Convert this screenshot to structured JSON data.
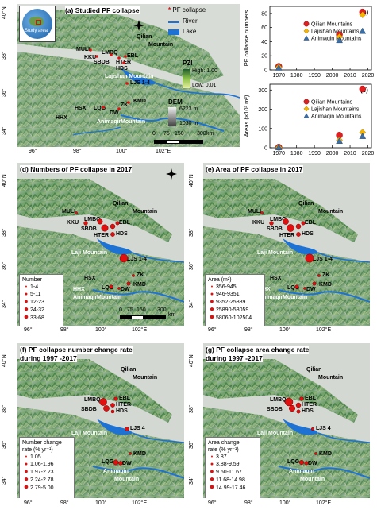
{
  "panel_a": {
    "label": "(a) Studied PF collapse",
    "inset_label": "Study area",
    "legend": {
      "pf": "PF collapse",
      "river": "River",
      "lake": "Lake",
      "pzi_title": "PZI",
      "pzi_high": "High: 1.00",
      "pzi_low": "Low: 0.01",
      "dem_title": "DEM",
      "dem_high": "6223 m",
      "dem_low": "1030 m"
    },
    "scale": {
      "t0": "0",
      "t1": "75",
      "t2": "150",
      "t3": "300",
      "unit": "km"
    },
    "labels": {
      "qilian": "Qilian",
      "mountain": "Mountain",
      "lajishan": "Lajishan Mountain",
      "animaqin": "Animaqin",
      "animaqin_mtn": "Mountain",
      "muli": "MULI",
      "kku": "KKU",
      "lmbq": "LMBQ",
      "sbdb": "SBDB",
      "ebl": "EBL",
      "hter": "HTER",
      "hds": "HDS",
      "ljs": "LJS 1-4",
      "hsx": "HSX",
      "lqg": "LQG",
      "zk": "ZK",
      "kmd": "KMD",
      "hhx": "HHX",
      "dw": "DW"
    },
    "xticks": [
      "96°",
      "98°",
      "100°",
      "102°E"
    ],
    "yticks": [
      "40°N",
      "38°",
      "36°",
      "34°"
    ]
  },
  "panel_b": {
    "label": "(b)",
    "ylabel": "PF collapse numbers",
    "legend": [
      "Qilian Mountains",
      "Lajishan Mountains",
      "Animaqin Mountains"
    ]
  },
  "panel_c": {
    "label": "(c)",
    "ylabel": "Areas (×10³ m²)",
    "legend": [
      "Qilian Mountains",
      "Lajishan Mountains",
      "Animaqin Mountains"
    ]
  },
  "chart_data": [
    {
      "type": "scatter",
      "title": "(b)",
      "ylabel": "PF collapse numbers",
      "x": [
        1970,
        2004,
        2017
      ],
      "xlim": [
        1965,
        2022
      ],
      "ylim": [
        0,
        90
      ],
      "xticks": [
        1970,
        1980,
        1990,
        2000,
        2010,
        2020
      ],
      "yticks": [
        0,
        20,
        40,
        60,
        80
      ],
      "series": [
        {
          "name": "Qilian Mountains",
          "color": "#e02020",
          "marker": "circle",
          "values": [
            5,
            50,
            82
          ]
        },
        {
          "name": "Lajishan Mountains",
          "color": "#f5b400",
          "marker": "diamond",
          "values": [
            4,
            47,
            78
          ]
        },
        {
          "name": "Animaqin Mountains",
          "color": "#3a6ea5",
          "marker": "triangle",
          "values": [
            3,
            42,
            55
          ]
        }
      ]
    },
    {
      "type": "scatter",
      "title": "(c)",
      "ylabel": "Areas (×10³ m²)",
      "x": [
        1970,
        2004,
        2017
      ],
      "xlim": [
        1965,
        2022
      ],
      "ylim": [
        0,
        330
      ],
      "xticks": [
        1970,
        1980,
        1990,
        2000,
        2010,
        2020
      ],
      "yticks": [
        0,
        100,
        200,
        300
      ],
      "series": [
        {
          "name": "Qilian Mountains",
          "color": "#e02020",
          "marker": "circle",
          "values": [
            3,
            65,
            305
          ]
        },
        {
          "name": "Lajishan Mountains",
          "color": "#f5b400",
          "marker": "diamond",
          "values": [
            2,
            40,
            80
          ]
        },
        {
          "name": "Animaqin Mountains",
          "color": "#3a6ea5",
          "marker": "triangle",
          "values": [
            2,
            35,
            60
          ]
        }
      ]
    }
  ],
  "panel_d": {
    "label": "(d) Numbers of PF collapse in 2017",
    "legend_title": "Number",
    "classes": [
      "1-4",
      "5-11",
      "12-23",
      "24-32",
      "33-68"
    ],
    "scale": {
      "t0": "0",
      "t1": "75",
      "t2": "150",
      "t3": "300",
      "unit": "km"
    }
  },
  "panel_e": {
    "label": "(e) Area of PF collapse in 2017",
    "legend_title": "Area (m²)",
    "classes": [
      "356-945",
      "946-9351",
      "9352-25889",
      "25890-58059",
      "58060-102504"
    ]
  },
  "panel_f": {
    "label1": "(f) PF collapse number change rate",
    "label2": "during 1997 -2017",
    "legend_title1": "Number change",
    "legend_title2": "rate  (% yr⁻¹)",
    "classes": [
      "1.05",
      "1.06-1.96",
      "1.97-2.23",
      "2.24-2.78",
      "2.79-5.00"
    ]
  },
  "panel_g": {
    "label1": "(g) PF collapse area change rate",
    "label2": "during 1997 -2017",
    "legend_title1": "Area change",
    "legend_title2": "rate  (% yr⁻¹)",
    "classes": [
      "3.87",
      "3.88-9.59",
      "9.60-11.67",
      "11.68-14.98",
      "14.99-17.46"
    ]
  },
  "map_common": {
    "qilian": "Qilian",
    "mountain": "Mountain",
    "laji": "Laji Mountain",
    "animaqin": "Animaqin",
    "animaqin_mtn": "Mountain",
    "muli": "MULI",
    "kku": "KKU",
    "lmbq": "LMBQ",
    "sbdb": "SBDB",
    "ebl": "EBL",
    "hter": "HTER",
    "hds": "HDS",
    "ljs": "LJS 1-4",
    "ljs4": "LJS 4",
    "hsx": "HSX",
    "lqg": "LQG",
    "zk": "ZK",
    "kmd": "KMD",
    "hhx": "HHX",
    "dw": "DW",
    "xticks_left": [
      "96°",
      "98°",
      "100°",
      "102°E"
    ],
    "xticks_right": [
      "96°",
      "98°",
      "100°",
      "102°E"
    ],
    "yticks": [
      "40°N",
      "38°",
      "36°",
      "34°"
    ],
    "north": "N"
  }
}
